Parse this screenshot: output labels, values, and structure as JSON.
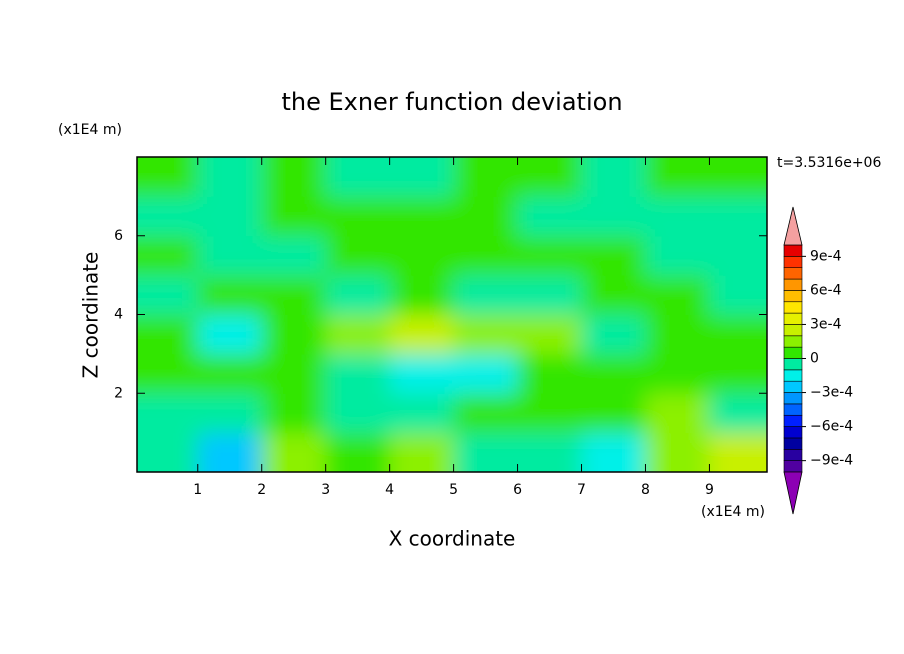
{
  "chart_data": {
    "type": "contour",
    "title": "the Exner function deviation",
    "xlabel": "X coordinate",
    "ylabel": "Z coordinate",
    "x_unit": "(x1E4 m)",
    "y_unit": "(x1E4 m)",
    "annotation": "t=3.5316e+06",
    "xlim": [
      0.05,
      9.9
    ],
    "ylim": [
      0,
      8
    ],
    "xticks": [
      1,
      2,
      3,
      4,
      5,
      6,
      7,
      8,
      9
    ],
    "yticks": [
      2,
      4,
      6
    ],
    "x": [
      0.5,
      1.5,
      2.5,
      3.5,
      4.5,
      5.5,
      6.5,
      7.5,
      8.5,
      9.5
    ],
    "y": [
      0.5,
      1.5,
      2.5,
      3.5,
      4.5,
      5.5,
      6.5,
      7.5
    ],
    "z": [
      [
        -5e-05,
        -0.00025,
        0.00015,
        5e-05,
        0.00015,
        -5e-05,
        -5e-05,
        -0.00015,
        0.00015,
        0.00025
      ],
      [
        -5e-05,
        -5e-05,
        5e-05,
        -5e-05,
        -5e-05,
        5e-05,
        5e-05,
        5e-05,
        0.00015,
        -5e-05
      ],
      [
        5e-05,
        5e-05,
        5e-05,
        -5e-05,
        -0.00015,
        -0.00015,
        5e-05,
        5e-05,
        5e-05,
        5e-05
      ],
      [
        5e-05,
        -0.00015,
        5e-05,
        0.00015,
        0.00025,
        0.00015,
        0.00015,
        -5e-05,
        5e-05,
        5e-05
      ],
      [
        -5e-05,
        5e-05,
        5e-05,
        -5e-05,
        5e-05,
        -5e-05,
        -5e-05,
        5e-05,
        5e-05,
        -5e-05
      ],
      [
        5e-05,
        -5e-05,
        -5e-05,
        5e-05,
        5e-05,
        5e-05,
        5e-05,
        5e-05,
        -5e-05,
        -5e-05
      ],
      [
        -5e-05,
        -5e-05,
        5e-05,
        5e-05,
        5e-05,
        5e-05,
        -5e-05,
        -5e-05,
        -5e-05,
        -5e-05
      ],
      [
        5e-05,
        -5e-05,
        5e-05,
        -5e-05,
        -5e-05,
        5e-05,
        5e-05,
        -5e-05,
        5e-05,
        5e-05
      ]
    ],
    "colorbar": {
      "levels": [
        -0.001,
        -0.0009,
        -0.0008,
        -0.0007,
        -0.0006,
        -0.0005,
        -0.0004,
        -0.0003,
        -0.0002,
        -0.0001,
        0,
        0.0001,
        0.0002,
        0.0003,
        0.0004,
        0.0005,
        0.0006,
        0.0007,
        0.0008,
        0.0009,
        0.001
      ],
      "colors": [
        "#5000a0",
        "#2800a0",
        "#0000a0",
        "#0000d0",
        "#0020ff",
        "#0064ff",
        "#0096ff",
        "#00c8ff",
        "#00f0e8",
        "#00eba0",
        "#32e600",
        "#8cf000",
        "#c8f000",
        "#e6f000",
        "#ffe600",
        "#ffbe00",
        "#ff9600",
        "#ff6400",
        "#ff3200",
        "#e60000"
      ],
      "under_color": "#8c00b4",
      "over_color": "#f4a0a0",
      "ticks": [
        {
          "value": 0.0009,
          "label": "9e-4"
        },
        {
          "value": 0.0006,
          "label": "6e-4"
        },
        {
          "value": 0.0003,
          "label": "3e-4"
        },
        0,
        {
          "value": -0.0003,
          "label": "−3e-4"
        },
        {
          "value": -0.0006,
          "label": "−6e-4"
        },
        {
          "value": -0.0009,
          "label": "−9e-4"
        }
      ]
    }
  }
}
